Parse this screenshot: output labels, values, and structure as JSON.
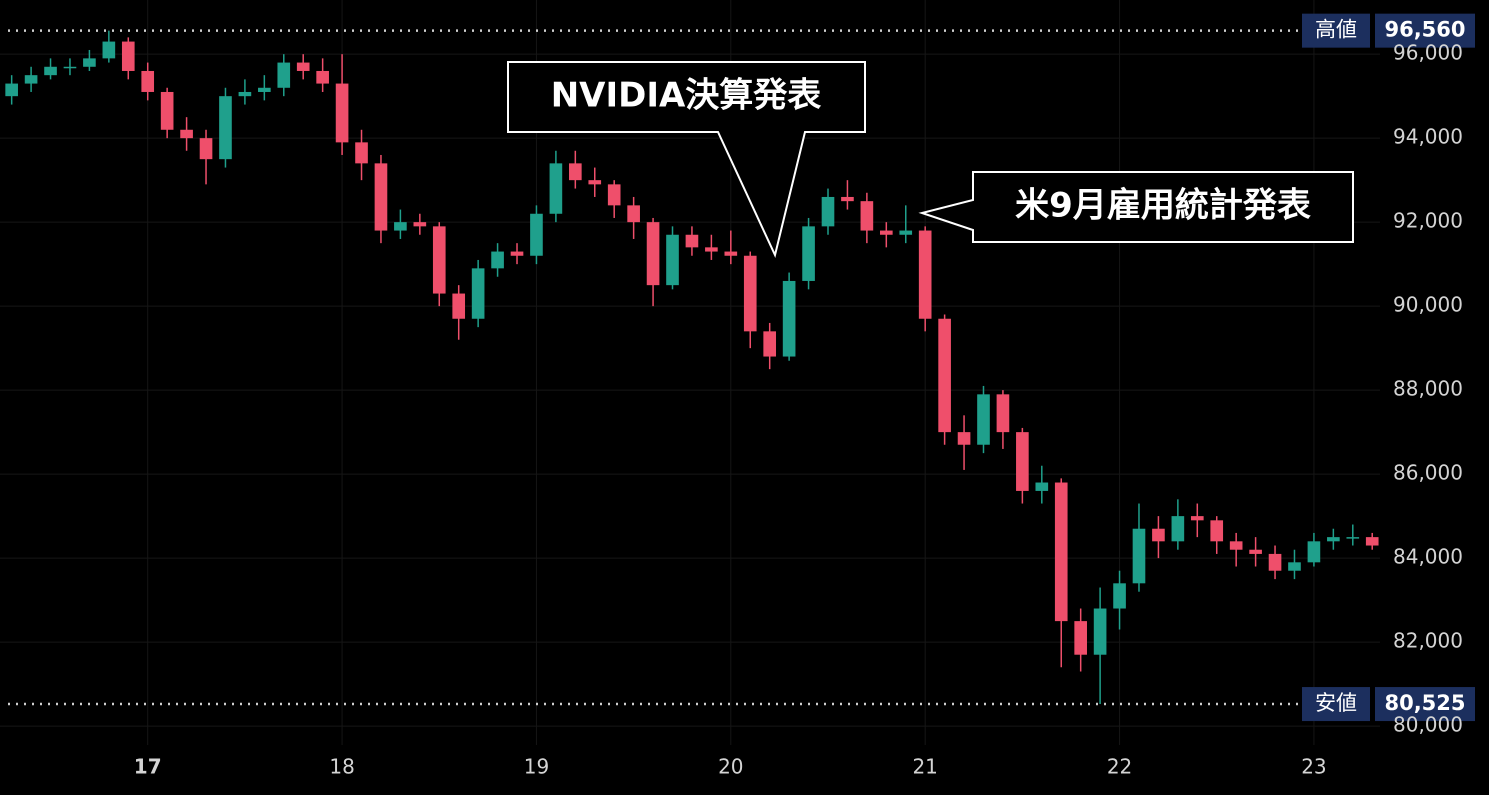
{
  "chart_data": {
    "type": "candlestick",
    "x": [
      16.3,
      16.4,
      16.5,
      16.6,
      16.7,
      16.8,
      16.9,
      17.0,
      17.1,
      17.2,
      17.3,
      17.4,
      17.5,
      17.6,
      17.7,
      17.8,
      17.9,
      18.0,
      18.1,
      18.2,
      18.3,
      18.4,
      18.5,
      18.6,
      18.7,
      18.8,
      18.9,
      19.0,
      19.1,
      19.2,
      19.3,
      19.4,
      19.5,
      19.6,
      19.7,
      19.8,
      19.9,
      20.0,
      20.1,
      20.2,
      20.3,
      20.4,
      20.5,
      20.6,
      20.7,
      20.8,
      20.9,
      21.0,
      21.1,
      21.2,
      21.3,
      21.4,
      21.5,
      21.6,
      21.7,
      21.8,
      21.9,
      22.0,
      22.1,
      22.2,
      22.3,
      22.4,
      22.5,
      22.6,
      22.7,
      22.8,
      22.9,
      23.0,
      23.1,
      23.2,
      23.3
    ],
    "open": [
      95000,
      95300,
      95500,
      95700,
      95700,
      95900,
      96300,
      95600,
      95100,
      94200,
      94000,
      93500,
      95000,
      95100,
      95200,
      95800,
      95600,
      95300,
      93900,
      93400,
      91800,
      92000,
      91900,
      90300,
      89700,
      90900,
      91300,
      91200,
      92200,
      93400,
      93000,
      92900,
      92400,
      92000,
      90500,
      91700,
      91400,
      91300,
      91200,
      89400,
      88800,
      90600,
      91900,
      92600,
      92500,
      91800,
      91700,
      91800,
      89700,
      87000,
      86700,
      87900,
      87000,
      85600,
      85800,
      82500,
      81700,
      82800,
      83400,
      84700,
      84400,
      85000,
      84900,
      84400,
      84200,
      84100,
      83700,
      83900,
      84400,
      84500,
      84500
    ],
    "high": [
      95500,
      95700,
      95900,
      95900,
      96100,
      96560,
      96400,
      95800,
      95200,
      94500,
      94200,
      95200,
      95400,
      95500,
      96000,
      96000,
      95900,
      96000,
      94200,
      93600,
      92300,
      92200,
      92000,
      90500,
      91100,
      91500,
      91500,
      92400,
      93700,
      93700,
      93300,
      93000,
      92600,
      92100,
      91900,
      91900,
      91700,
      91800,
      91300,
      89600,
      90800,
      92100,
      92800,
      93000,
      92700,
      92000,
      92400,
      91900,
      89800,
      87400,
      88100,
      88000,
      87100,
      86200,
      85900,
      82800,
      83300,
      83700,
      85300,
      85000,
      85400,
      85300,
      85000,
      84600,
      84500,
      84300,
      84200,
      84600,
      84700,
      84800,
      84600
    ],
    "low": [
      94800,
      95100,
      95400,
      95500,
      95600,
      95800,
      95400,
      94900,
      94000,
      93700,
      92900,
      93300,
      94800,
      94900,
      95000,
      95400,
      95100,
      93600,
      93000,
      91500,
      91600,
      91700,
      90000,
      89200,
      89500,
      90700,
      91000,
      91000,
      92000,
      92800,
      92600,
      92100,
      91600,
      90000,
      90400,
      91200,
      91100,
      91000,
      89000,
      88500,
      88700,
      90400,
      91700,
      92300,
      91500,
      91400,
      91500,
      89400,
      86700,
      86100,
      86500,
      86600,
      85300,
      85300,
      81400,
      81300,
      80525,
      82300,
      83200,
      84000,
      84200,
      84500,
      84100,
      83800,
      83800,
      83500,
      83500,
      83800,
      84200,
      84300,
      84200
    ],
    "close": [
      95300,
      95500,
      95700,
      95700,
      95900,
      96300,
      95600,
      95100,
      94200,
      94000,
      93500,
      95000,
      95100,
      95200,
      95800,
      95600,
      95300,
      93900,
      93400,
      91800,
      92000,
      91900,
      90300,
      89700,
      90900,
      91300,
      91200,
      92200,
      93400,
      93000,
      92900,
      92400,
      92000,
      90500,
      91700,
      91400,
      91300,
      91200,
      89400,
      88800,
      90600,
      91900,
      92600,
      92500,
      91800,
      91700,
      91800,
      89700,
      87000,
      86700,
      87900,
      87000,
      85600,
      85800,
      82500,
      81700,
      82800,
      83400,
      84700,
      84400,
      85000,
      84900,
      84400,
      84200,
      84100,
      83700,
      83900,
      84400,
      84500,
      84500,
      84300
    ],
    "up_color": "#1fa08c",
    "down_color": "#ef4f6b",
    "xlim": [
      16.24,
      23.34
    ],
    "xticks": [
      17,
      18,
      19,
      20,
      21,
      22,
      23
    ],
    "ylim": [
      79550,
      97290
    ],
    "yticks": [
      {
        "value": 80000,
        "label": "80,000"
      },
      {
        "value": 82000,
        "label": "82,000"
      },
      {
        "value": 84000,
        "label": "84,000"
      },
      {
        "value": 86000,
        "label": "86,000"
      },
      {
        "value": 88000,
        "label": "88,000"
      },
      {
        "value": 90000,
        "label": "90,000"
      },
      {
        "value": 92000,
        "label": "92,000"
      },
      {
        "value": 94000,
        "label": "94,000"
      },
      {
        "value": 96000,
        "label": "96,000"
      }
    ],
    "grid": true,
    "reference_lines": [
      {
        "name": "高値",
        "value": 96560,
        "value_label": "96,560"
      },
      {
        "name": "安値",
        "value": 80525,
        "value_label": "80,525"
      }
    ],
    "annotations": [
      {
        "text": "NVIDIA決算発表"
      },
      {
        "text": "米9月雇用統計発表"
      }
    ]
  }
}
